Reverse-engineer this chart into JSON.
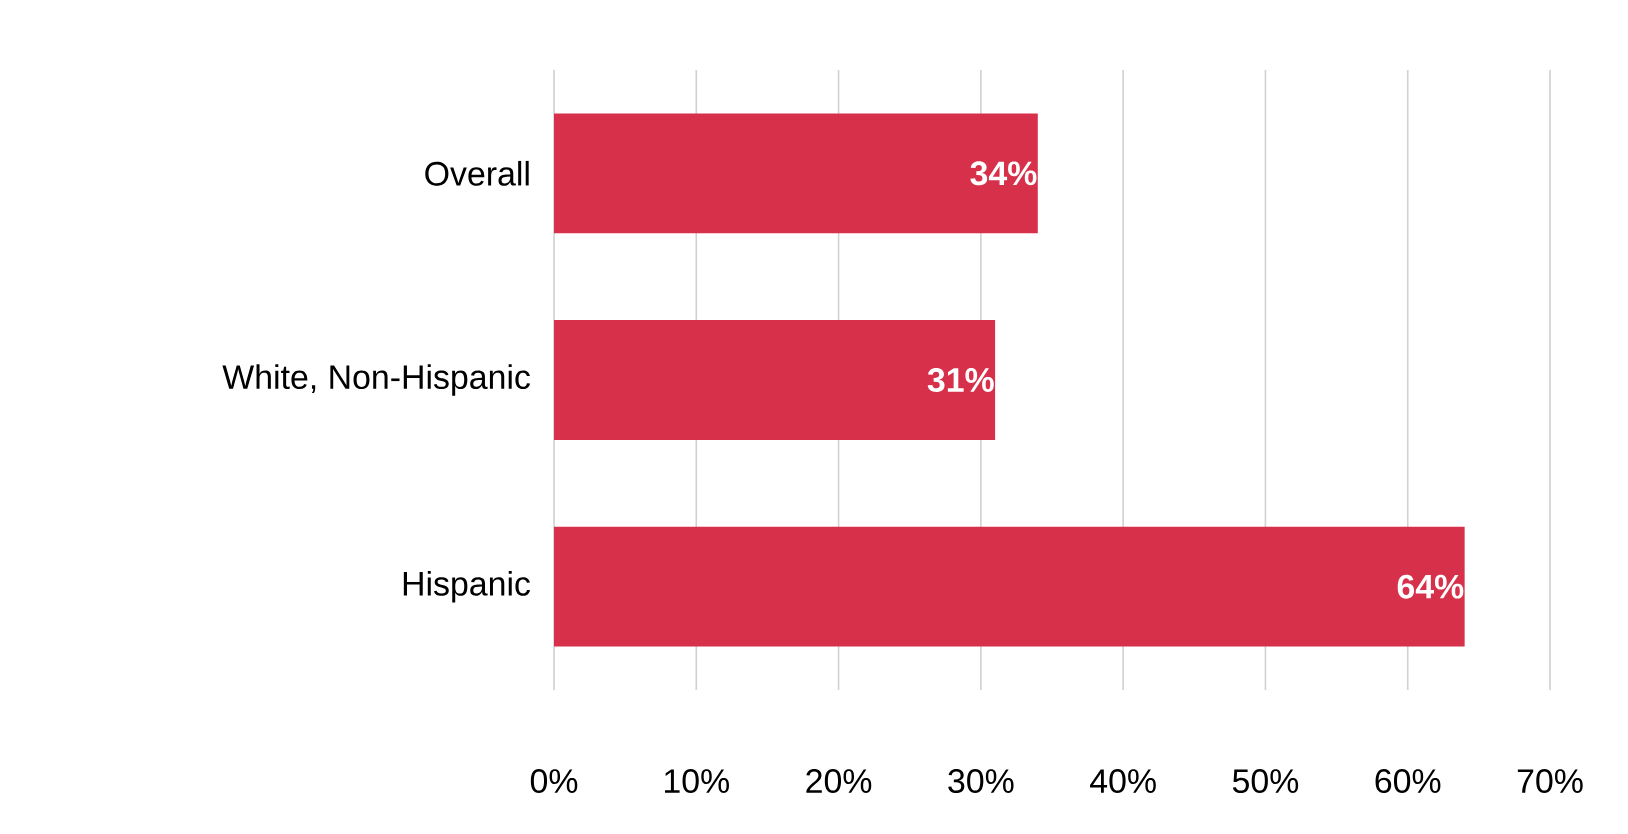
{
  "chart_data": {
    "type": "bar",
    "orientation": "horizontal",
    "categories": [
      "Overall",
      "White, Non-Hispanic",
      "Hispanic"
    ],
    "values": [
      34,
      31,
      64
    ],
    "value_labels": [
      "34%",
      "31%",
      "64%"
    ],
    "color": "#d6304a",
    "xlim": [
      0,
      70
    ],
    "xticks": [
      {
        "value": 0,
        "label": "0%"
      },
      {
        "value": 10,
        "label": "10%"
      },
      {
        "value": 20,
        "label": "20%"
      },
      {
        "value": 30,
        "label": "30%"
      },
      {
        "value": 40,
        "label": "40%"
      },
      {
        "value": 50,
        "label": "50%"
      },
      {
        "value": 60,
        "label": "60%"
      },
      {
        "value": 70,
        "label": "70%"
      }
    ],
    "grid": "x"
  }
}
